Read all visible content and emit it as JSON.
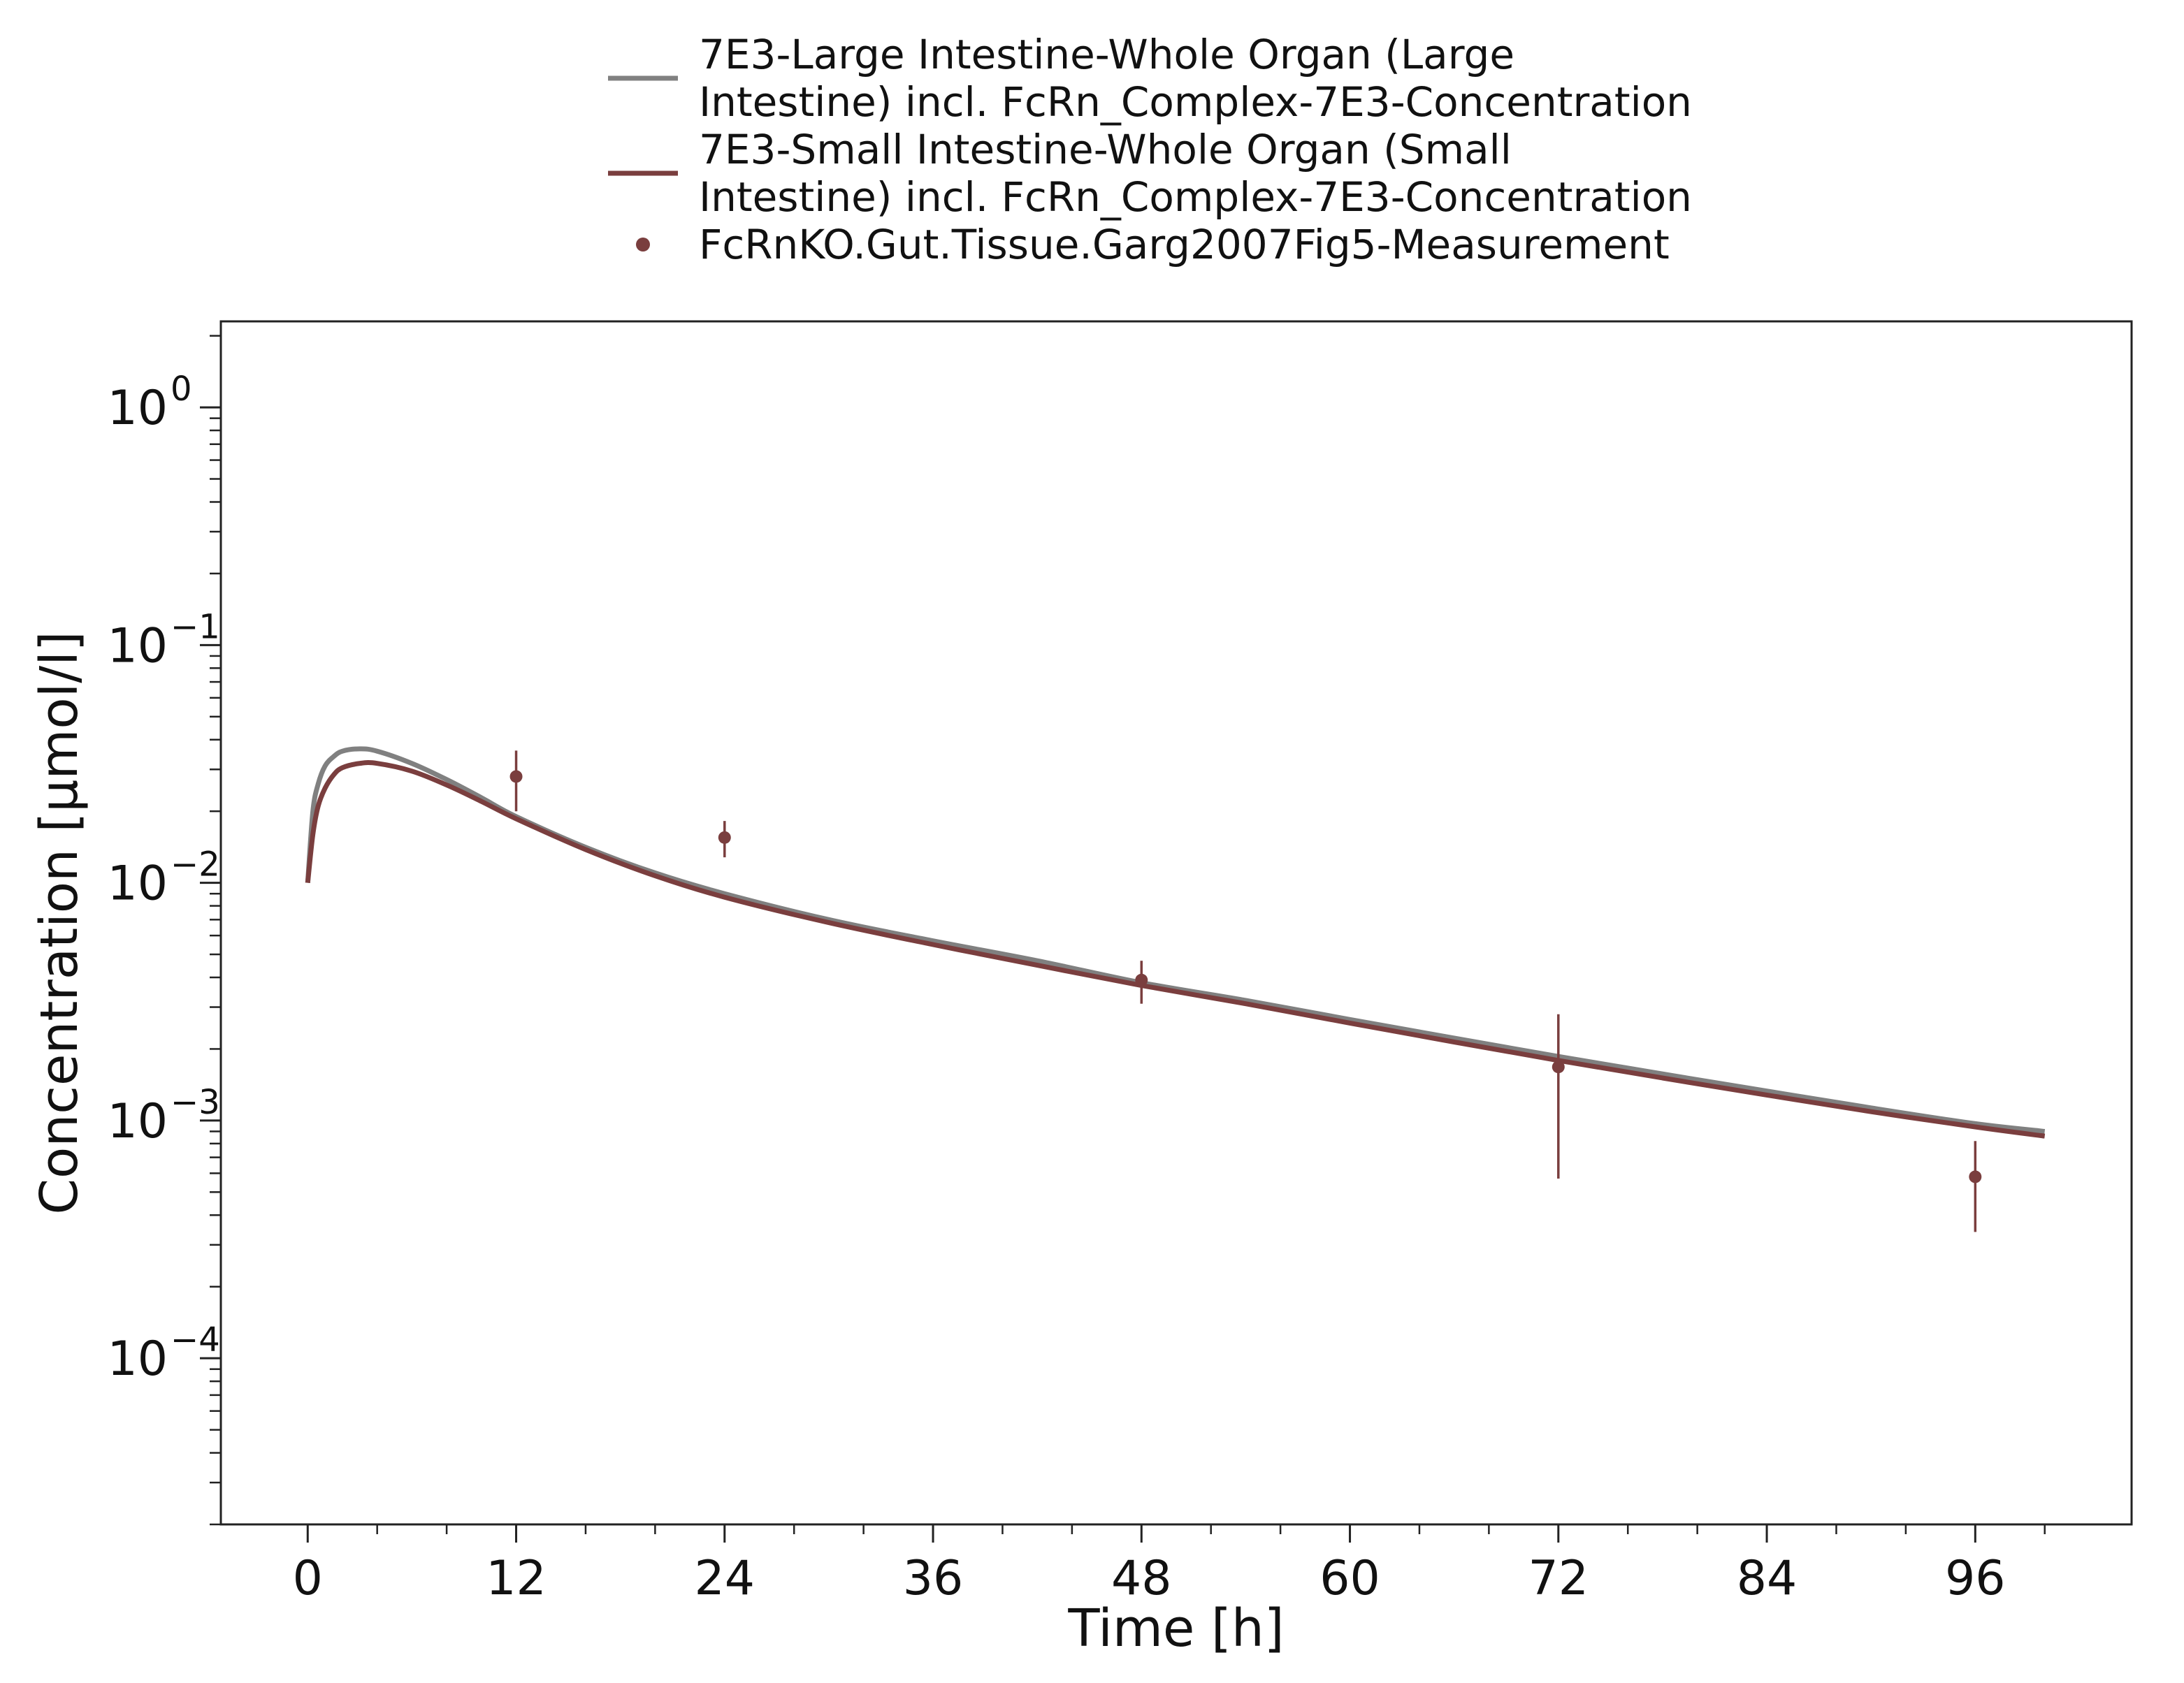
{
  "chart_data": {
    "type": "line",
    "xlabel": "Time [h]",
    "ylabel": "Concentration [µmol/l]",
    "xlim": [
      -5,
      105
    ],
    "ylim": [
      2e-05,
      2.3
    ],
    "yscale": "log",
    "xticks": [
      0,
      12,
      24,
      36,
      48,
      60,
      72,
      84,
      96
    ],
    "yticks": [
      {
        "value": 1,
        "base": "10",
        "exp": "0"
      },
      {
        "value": 0.1,
        "base": "10",
        "exp": "−1"
      },
      {
        "value": 0.01,
        "base": "10",
        "exp": "−2"
      },
      {
        "value": 0.001,
        "base": "10",
        "exp": "−3"
      },
      {
        "value": 0.0001,
        "base": "10",
        "exp": "−4"
      }
    ],
    "grid": false,
    "legend_position": "top-center",
    "series": [
      {
        "name": "7E3-Large Intestine-Whole Organ (Large Intestine) incl. FcRn_Complex-7E3-Concentration",
        "legend_lines": [
          "7E3-Large Intestine-Whole Organ (Large",
          "Intestine) incl. FcRn_Complex-7E3-Concentration"
        ],
        "kind": "line",
        "color": "#808080",
        "x": [
          0,
          0.3,
          0.6,
          1,
          1.5,
          2,
          3,
          4,
          6,
          8,
          10,
          12,
          16,
          20,
          24,
          30,
          36,
          42,
          48,
          54,
          60,
          66,
          72,
          78,
          84,
          90,
          96,
          100
        ],
        "y": [
          0.01,
          0.02,
          0.026,
          0.031,
          0.034,
          0.0358,
          0.0366,
          0.0358,
          0.0318,
          0.0272,
          0.0228,
          0.019,
          0.0141,
          0.011,
          0.009,
          0.007,
          0.0057,
          0.0047,
          0.0038,
          0.0032,
          0.00266,
          0.00222,
          0.00186,
          0.00157,
          0.00133,
          0.00113,
          0.00097,
          0.0009
        ]
      },
      {
        "name": "7E3-Small Intestine-Whole Organ (Small Intestine) incl. FcRn_Complex-7E3-Concentration",
        "legend_lines": [
          "7E3-Small Intestine-Whole Organ (Small",
          "Intestine) incl. FcRn_Complex-7E3-Concentration"
        ],
        "kind": "line",
        "color": "#7a3e3e",
        "x": [
          0,
          0.3,
          0.6,
          1,
          1.5,
          2,
          3,
          4,
          6,
          8,
          10,
          12,
          16,
          20,
          24,
          30,
          36,
          42,
          48,
          54,
          60,
          66,
          72,
          78,
          84,
          90,
          96,
          100
        ],
        "y": [
          0.01,
          0.016,
          0.021,
          0.025,
          0.0285,
          0.0305,
          0.0318,
          0.0318,
          0.0295,
          0.0258,
          0.022,
          0.0186,
          0.0138,
          0.0107,
          0.0087,
          0.0068,
          0.0055,
          0.0045,
          0.0037,
          0.0031,
          0.00257,
          0.00214,
          0.00179,
          0.00151,
          0.00128,
          0.00109,
          0.00094,
          0.00086
        ]
      },
      {
        "name": "FcRnKO.Gut.Tissue.Garg2007Fig5-Measurement",
        "legend_lines": [
          "FcRnKO.Gut.Tissue.Garg2007Fig5-Measurement"
        ],
        "kind": "points",
        "color": "#7a3e3e",
        "x": [
          12,
          24,
          48,
          72,
          96
        ],
        "y": [
          0.028,
          0.0155,
          0.0039,
          0.00168,
          0.00058
        ],
        "y_err_low": [
          0.02,
          0.0128,
          0.0031,
          0.00057,
          0.00034
        ],
        "y_err_high": [
          0.036,
          0.0182,
          0.0047,
          0.0028,
          0.00082
        ]
      }
    ]
  }
}
